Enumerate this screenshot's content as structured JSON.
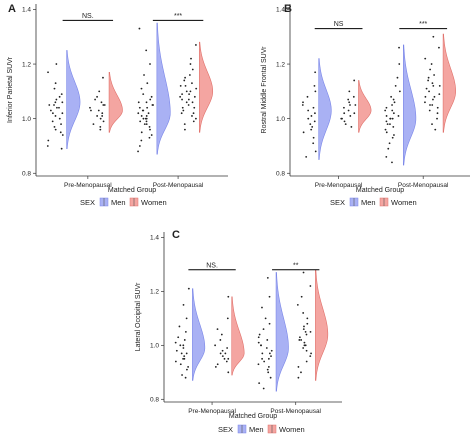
{
  "legend": {
    "title": "SEX",
    "entries": [
      {
        "label": "Men",
        "color": "#a9b1f4"
      },
      {
        "label": "Women",
        "color": "#f4a5a1"
      }
    ]
  },
  "colors": {
    "men_fill": "#a9b1f4",
    "men_stroke": "#7a86e8",
    "women_fill": "#f4a5a1",
    "women_stroke": "#e0706a",
    "points": "#222222",
    "axis": "#333333"
  },
  "chart_data": [
    {
      "panel": "A",
      "type": "scatter",
      "subtype": "raincloud",
      "ylabel": "Inferior Parietal SUVr",
      "xlabel": "Matched Group",
      "categories": [
        "Pre-Menopausal",
        "Post-Menopausal"
      ],
      "yticks": [
        0.8,
        1.0,
        1.2,
        1.4
      ],
      "ylim": [
        0.79,
        1.42
      ],
      "significance": [
        {
          "group": "Pre-Menopausal",
          "label": "NS.",
          "y": 1.36
        },
        {
          "group": "Post-Menopausal",
          "label": "***",
          "y": 1.36
        }
      ],
      "series": [
        {
          "name": "Men",
          "group": "Pre-Menopausal",
          "min": 0.89,
          "max": 1.25,
          "mode": 1.06,
          "points": [
            1.13,
            1.11,
            1.09,
            1.08,
            1.07,
            1.06,
            1.06,
            1.05,
            1.05,
            1.04,
            1.04,
            1.03,
            1.02,
            1.02,
            1.01,
            1.0,
            0.99,
            0.98,
            0.97,
            0.96,
            0.95,
            0.94,
            0.92,
            0.9,
            0.89,
            1.2,
            1.17
          ]
        },
        {
          "name": "Women",
          "group": "Pre-Menopausal",
          "min": 0.95,
          "max": 1.17,
          "mode": 1.03,
          "points": [
            1.15,
            1.1,
            1.08,
            1.07,
            1.06,
            1.05,
            1.04,
            1.03,
            1.02,
            1.01,
            1.0,
            0.99,
            0.98,
            0.97,
            0.96,
            1.05,
            1.03,
            1.01
          ]
        },
        {
          "name": "Men",
          "group": "Post-Menopausal",
          "min": 0.87,
          "max": 1.35,
          "mode": 1.02,
          "points": [
            1.33,
            1.25,
            1.2,
            1.16,
            1.13,
            1.11,
            1.09,
            1.08,
            1.07,
            1.06,
            1.05,
            1.05,
            1.04,
            1.03,
            1.03,
            1.02,
            1.02,
            1.01,
            1.0,
            1.0,
            0.99,
            0.99,
            0.98,
            0.97,
            0.96,
            0.95,
            0.94,
            0.93,
            0.92,
            0.9,
            0.88,
            1.06,
            1.04,
            1.01,
            1.0,
            0.98
          ]
        },
        {
          "name": "Women",
          "group": "Post-Menopausal",
          "min": 0.95,
          "max": 1.28,
          "mode": 1.1,
          "points": [
            1.27,
            1.22,
            1.2,
            1.18,
            1.16,
            1.15,
            1.14,
            1.13,
            1.12,
            1.11,
            1.1,
            1.1,
            1.09,
            1.08,
            1.08,
            1.07,
            1.07,
            1.06,
            1.05,
            1.04,
            1.03,
            1.02,
            1.01,
            1.0,
            0.99,
            0.98,
            0.96,
            1.12,
            1.09,
            1.06,
            1.04,
            1.02
          ]
        }
      ]
    },
    {
      "panel": "B",
      "type": "scatter",
      "subtype": "raincloud",
      "ylabel": "Rostral Middle Frontal SUVr",
      "xlabel": "Matched Group",
      "categories": [
        "Pre-Menopausal",
        "Post-Menopausal"
      ],
      "yticks": [
        0.8,
        1.0,
        1.2,
        1.4
      ],
      "ylim": [
        0.79,
        1.42
      ],
      "significance": [
        {
          "group": "Pre-Menopausal",
          "label": "NS",
          "y": 1.33
        },
        {
          "group": "Post-Menopausal",
          "label": "***",
          "y": 1.33
        }
      ],
      "series": [
        {
          "name": "Men",
          "group": "Pre-Menopausal",
          "min": 0.85,
          "max": 1.22,
          "mode": 1.03,
          "points": [
            1.17,
            1.12,
            1.1,
            1.08,
            1.06,
            1.05,
            1.04,
            1.03,
            1.02,
            1.01,
            1.0,
            0.99,
            0.98,
            0.97,
            0.96,
            0.95,
            0.93,
            0.91,
            0.88,
            0.86
          ]
        },
        {
          "name": "Women",
          "group": "Pre-Menopausal",
          "min": 0.95,
          "max": 1.14,
          "mode": 1.03,
          "points": [
            1.14,
            1.1,
            1.08,
            1.07,
            1.06,
            1.05,
            1.04,
            1.03,
            1.02,
            1.01,
            1.0,
            0.99,
            0.98,
            0.97,
            1.05,
            1.02,
            1.0
          ]
        },
        {
          "name": "Men",
          "group": "Post-Menopausal",
          "min": 0.83,
          "max": 1.27,
          "mode": 1.0,
          "points": [
            1.26,
            1.2,
            1.15,
            1.12,
            1.1,
            1.08,
            1.07,
            1.06,
            1.05,
            1.04,
            1.03,
            1.02,
            1.01,
            1.01,
            1.0,
            1.0,
            0.99,
            0.98,
            0.97,
            0.96,
            0.95,
            0.94,
            0.93,
            0.91,
            0.89,
            0.86,
            0.84,
            1.03,
            1.0,
            0.98
          ]
        },
        {
          "name": "Women",
          "group": "Post-Menopausal",
          "min": 0.95,
          "max": 1.31,
          "mode": 1.1,
          "points": [
            1.3,
            1.26,
            1.22,
            1.2,
            1.18,
            1.16,
            1.15,
            1.14,
            1.13,
            1.12,
            1.11,
            1.1,
            1.09,
            1.08,
            1.07,
            1.06,
            1.05,
            1.04,
            1.03,
            1.02,
            1.0,
            0.98,
            0.96,
            1.12,
            1.08,
            1.05
          ]
        }
      ]
    },
    {
      "panel": "C",
      "type": "scatter",
      "subtype": "raincloud",
      "ylabel": "Lateral Occipital SUVr",
      "xlabel": "Matched Group",
      "categories": [
        "Pre-Menopausal",
        "Post-Menopausal"
      ],
      "yticks": [
        0.8,
        1.0,
        1.2,
        1.4
      ],
      "ylim": [
        0.79,
        1.42
      ],
      "significance": [
        {
          "group": "Pre-Menopausal",
          "label": "NS.",
          "y": 1.28
        },
        {
          "group": "Post-Menopausal",
          "label": "**",
          "y": 1.28
        }
      ],
      "series": [
        {
          "name": "Men",
          "group": "Pre-Menopausal",
          "min": 0.87,
          "max": 1.21,
          "mode": 0.99,
          "points": [
            1.21,
            1.15,
            1.1,
            1.07,
            1.05,
            1.03,
            1.02,
            1.01,
            1.0,
            0.99,
            0.98,
            0.97,
            0.96,
            0.95,
            0.94,
            0.93,
            0.92,
            0.91,
            0.89,
            0.88,
            1.0,
            0.97,
            0.95
          ]
        },
        {
          "name": "Women",
          "group": "Pre-Menopausal",
          "min": 0.89,
          "max": 1.18,
          "mode": 0.97,
          "points": [
            1.18,
            1.1,
            1.06,
            1.04,
            1.02,
            1.0,
            0.99,
            0.98,
            0.97,
            0.96,
            0.95,
            0.94,
            0.93,
            0.92,
            0.9,
            0.97,
            0.95
          ]
        },
        {
          "name": "Men",
          "group": "Post-Menopausal",
          "min": 0.83,
          "max": 1.27,
          "mode": 0.99,
          "points": [
            1.25,
            1.18,
            1.14,
            1.1,
            1.08,
            1.06,
            1.04,
            1.03,
            1.02,
            1.01,
            1.0,
            0.99,
            0.98,
            0.97,
            0.96,
            0.95,
            0.94,
            0.93,
            0.92,
            0.91,
            0.9,
            0.88,
            0.86,
            0.84,
            1.0,
            0.97,
            0.95
          ]
        },
        {
          "name": "Women",
          "group": "Post-Menopausal",
          "min": 0.87,
          "max": 1.28,
          "mode": 1.04,
          "points": [
            1.27,
            1.22,
            1.18,
            1.15,
            1.12,
            1.1,
            1.08,
            1.07,
            1.06,
            1.05,
            1.04,
            1.03,
            1.02,
            1.01,
            1.0,
            0.99,
            0.98,
            0.97,
            0.96,
            0.94,
            0.92,
            0.9,
            0.88,
            1.05,
            1.02,
            1.0
          ]
        }
      ]
    }
  ]
}
